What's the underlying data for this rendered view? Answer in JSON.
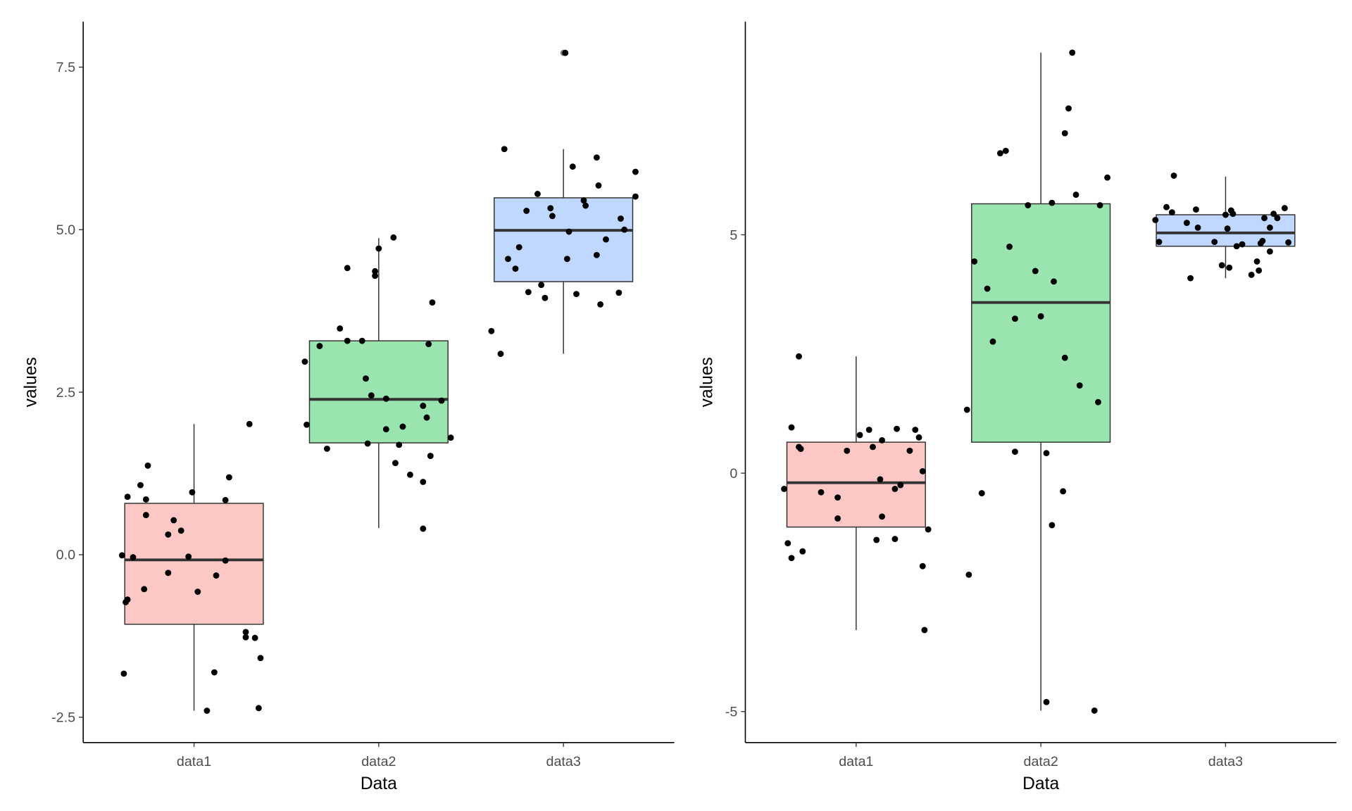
{
  "chart_data": [
    {
      "type": "boxplot",
      "title": "",
      "xlabel": "Data",
      "ylabel": "values",
      "categories": [
        "data1",
        "data2",
        "data3"
      ],
      "xlim": [
        0.4,
        3.6
      ],
      "ylim": [
        -2.89,
        8.2
      ],
      "yticks": [
        -2.5,
        0.0,
        2.5,
        5.0,
        7.5
      ],
      "ytick_labels": [
        "-2.5",
        "0.0",
        "2.5",
        "5.0",
        "7.5"
      ],
      "grid": false,
      "fills": [
        "#fbc8c5",
        "#99e4af",
        "#c0d7ff"
      ],
      "boxes": [
        {
          "q1": -1.07,
          "median": -0.08,
          "q3": 0.79,
          "whisker_low": -2.4,
          "whisker_high": 2.01,
          "outliers": []
        },
        {
          "q1": 1.72,
          "median": 2.39,
          "q3": 3.29,
          "whisker_low": 0.41,
          "whisker_high": 4.87,
          "outliers": []
        },
        {
          "q1": 4.2,
          "median": 4.99,
          "q3": 5.49,
          "whisker_low": 3.09,
          "whisker_high": 6.24,
          "outliers": [
            7.72
          ]
        }
      ],
      "points": [
        [
          [
            -0.39,
            -0.01
          ],
          [
            -0.36,
            0.89
          ],
          [
            -0.33,
            -0.04
          ],
          [
            -0.29,
            1.07
          ],
          [
            -0.26,
            0.85
          ],
          [
            -0.25,
            1.37
          ],
          [
            -0.26,
            0.61
          ],
          [
            -0.27,
            -0.53
          ],
          [
            -0.37,
            -0.73
          ],
          [
            -0.36,
            -0.69
          ],
          [
            -0.38,
            -1.83
          ],
          [
            -0.14,
            0.31
          ],
          [
            -0.11,
            0.53
          ],
          [
            -0.07,
            0.37
          ],
          [
            -0.14,
            -0.28
          ],
          [
            -0.03,
            -0.03
          ],
          [
            -0.01,
            0.96
          ],
          [
            0.02,
            -0.57
          ],
          [
            0.12,
            -0.32
          ],
          [
            0.17,
            -0.09
          ],
          [
            0.17,
            0.84
          ],
          [
            0.19,
            1.19
          ],
          [
            0.3,
            2.01
          ],
          [
            0.28,
            -1.19
          ],
          [
            0.28,
            -1.27
          ],
          [
            0.33,
            -1.28
          ],
          [
            0.36,
            -1.59
          ],
          [
            0.35,
            -2.36
          ],
          [
            0.11,
            -1.81
          ],
          [
            0.07,
            -2.4
          ]
        ],
        [
          [
            -0.4,
            2.97
          ],
          [
            -0.39,
            2.0
          ],
          [
            -0.32,
            3.21
          ],
          [
            -0.28,
            1.63
          ],
          [
            -0.21,
            3.48
          ],
          [
            -0.17,
            3.29
          ],
          [
            -0.17,
            4.41
          ],
          [
            -0.09,
            3.29
          ],
          [
            -0.07,
            2.71
          ],
          [
            -0.04,
            2.45
          ],
          [
            -0.02,
            4.36
          ],
          [
            -0.02,
            4.29
          ],
          [
            0.0,
            4.71
          ],
          [
            0.04,
            2.4
          ],
          [
            0.04,
            1.93
          ],
          [
            0.08,
            4.88
          ],
          [
            0.09,
            1.41
          ],
          [
            0.11,
            1.69
          ],
          [
            0.13,
            1.97
          ],
          [
            0.17,
            1.23
          ],
          [
            0.24,
            1.12
          ],
          [
            0.24,
            2.29
          ],
          [
            0.24,
            0.4
          ],
          [
            0.26,
            2.11
          ],
          [
            0.27,
            3.24
          ],
          [
            0.28,
            1.52
          ],
          [
            0.29,
            3.88
          ],
          [
            0.34,
            2.37
          ],
          [
            0.39,
            1.8
          ],
          [
            -0.06,
            1.71
          ]
        ],
        [
          [
            -0.39,
            3.44
          ],
          [
            -0.34,
            3.09
          ],
          [
            -0.32,
            6.24
          ],
          [
            -0.3,
            4.55
          ],
          [
            -0.26,
            4.4
          ],
          [
            -0.24,
            4.73
          ],
          [
            -0.2,
            5.29
          ],
          [
            -0.19,
            4.04
          ],
          [
            -0.14,
            5.55
          ],
          [
            -0.12,
            4.15
          ],
          [
            -0.1,
            3.95
          ],
          [
            -0.07,
            5.33
          ],
          [
            -0.06,
            5.21
          ],
          [
            0.02,
            4.55
          ],
          [
            0.03,
            4.97
          ],
          [
            0.05,
            5.97
          ],
          [
            0.07,
            4.01
          ],
          [
            0.11,
            5.45
          ],
          [
            0.12,
            5.37
          ],
          [
            0.18,
            4.61
          ],
          [
            0.19,
            5.68
          ],
          [
            0.18,
            6.11
          ],
          [
            0.2,
            3.85
          ],
          [
            0.23,
            4.85
          ],
          [
            0.3,
            4.03
          ],
          [
            0.31,
            5.17
          ],
          [
            0.33,
            5.0
          ],
          [
            0.39,
            5.89
          ],
          [
            0.39,
            5.51
          ],
          [
            0.01,
            7.72
          ]
        ]
      ]
    },
    {
      "type": "boxplot",
      "title": "",
      "xlabel": "Data",
      "ylabel": "values",
      "categories": [
        "data1",
        "data2",
        "data3"
      ],
      "xlim": [
        0.4,
        3.6
      ],
      "ylim": [
        -5.65,
        9.47
      ],
      "yticks": [
        -5,
        0,
        5
      ],
      "ytick_labels": [
        "-5",
        "0",
        "5"
      ],
      "grid": false,
      "fills": [
        "#fbc8c5",
        "#99e4af",
        "#c0d7ff"
      ],
      "boxes": [
        {
          "q1": -1.13,
          "median": -0.2,
          "q3": 0.65,
          "whisker_low": -3.29,
          "whisker_high": 2.45,
          "outliers": []
        },
        {
          "q1": 0.65,
          "median": 3.58,
          "q3": 5.65,
          "whisker_low": -4.98,
          "whisker_high": 8.82,
          "outliers": []
        },
        {
          "q1": 4.76,
          "median": 5.04,
          "q3": 5.42,
          "whisker_low": 4.09,
          "whisker_high": 6.22,
          "outliers": []
        }
      ],
      "points": [
        [
          [
            -0.31,
            2.45
          ],
          [
            -0.35,
            0.96
          ],
          [
            -0.31,
            0.55
          ],
          [
            -0.3,
            0.51
          ],
          [
            -0.39,
            -0.33
          ],
          [
            -0.37,
            -1.47
          ],
          [
            -0.35,
            -1.78
          ],
          [
            -0.29,
            -1.64
          ],
          [
            -0.19,
            -0.4
          ],
          [
            -0.1,
            -0.51
          ],
          [
            -0.1,
            -0.95
          ],
          [
            -0.05,
            0.47
          ],
          [
            0.02,
            0.8
          ],
          [
            0.07,
            0.91
          ],
          [
            0.09,
            0.55
          ],
          [
            0.14,
            0.69
          ],
          [
            0.13,
            -0.13
          ],
          [
            0.14,
            -0.91
          ],
          [
            0.11,
            -1.4
          ],
          [
            0.21,
            -1.38
          ],
          [
            0.21,
            -0.33
          ],
          [
            0.24,
            -0.25
          ],
          [
            0.22,
            0.93
          ],
          [
            0.29,
            0.47
          ],
          [
            0.32,
            0.91
          ],
          [
            0.34,
            0.75
          ],
          [
            0.36,
            0.04
          ],
          [
            0.39,
            -1.18
          ],
          [
            0.36,
            -1.95
          ],
          [
            0.37,
            -3.29
          ]
        ],
        [
          [
            -0.4,
            1.33
          ],
          [
            -0.39,
            -2.13
          ],
          [
            -0.36,
            4.44
          ],
          [
            -0.32,
            -0.42
          ],
          [
            -0.29,
            3.87
          ],
          [
            -0.26,
            2.76
          ],
          [
            -0.22,
            6.71
          ],
          [
            -0.19,
            6.76
          ],
          [
            -0.17,
            4.75
          ],
          [
            -0.14,
            0.45
          ],
          [
            -0.14,
            3.24
          ],
          [
            -0.07,
            5.62
          ],
          [
            -0.03,
            4.24
          ],
          [
            0.0,
            3.29
          ],
          [
            0.03,
            -4.8
          ],
          [
            0.03,
            0.42
          ],
          [
            0.06,
            5.67
          ],
          [
            0.06,
            -1.09
          ],
          [
            0.07,
            4.02
          ],
          [
            0.12,
            -0.38
          ],
          [
            0.13,
            2.42
          ],
          [
            0.13,
            7.13
          ],
          [
            0.15,
            7.65
          ],
          [
            0.17,
            8.82
          ],
          [
            0.19,
            5.84
          ],
          [
            0.21,
            1.84
          ],
          [
            0.29,
            -4.98
          ],
          [
            0.31,
            1.49
          ],
          [
            0.32,
            5.62
          ],
          [
            0.36,
            6.2
          ]
        ],
        [
          [
            -0.38,
            5.31
          ],
          [
            -0.36,
            4.85
          ],
          [
            -0.32,
            5.58
          ],
          [
            -0.29,
            5.47
          ],
          [
            -0.28,
            6.24
          ],
          [
            -0.21,
            5.25
          ],
          [
            -0.19,
            4.09
          ],
          [
            -0.16,
            5.53
          ],
          [
            -0.15,
            5.15
          ],
          [
            -0.06,
            4.85
          ],
          [
            -0.02,
            4.36
          ],
          [
            0.0,
            5.42
          ],
          [
            0.01,
            5.13
          ],
          [
            0.02,
            4.31
          ],
          [
            0.03,
            5.51
          ],
          [
            0.04,
            5.44
          ],
          [
            0.06,
            4.76
          ],
          [
            0.09,
            4.8
          ],
          [
            0.14,
            4.16
          ],
          [
            0.17,
            4.44
          ],
          [
            0.18,
            4.25
          ],
          [
            0.19,
            4.82
          ],
          [
            0.2,
            4.87
          ],
          [
            0.21,
            5.35
          ],
          [
            0.24,
            4.65
          ],
          [
            0.24,
            5.15
          ],
          [
            0.26,
            5.44
          ],
          [
            0.28,
            5.35
          ],
          [
            0.32,
            5.56
          ],
          [
            0.34,
            4.84
          ]
        ]
      ]
    }
  ]
}
